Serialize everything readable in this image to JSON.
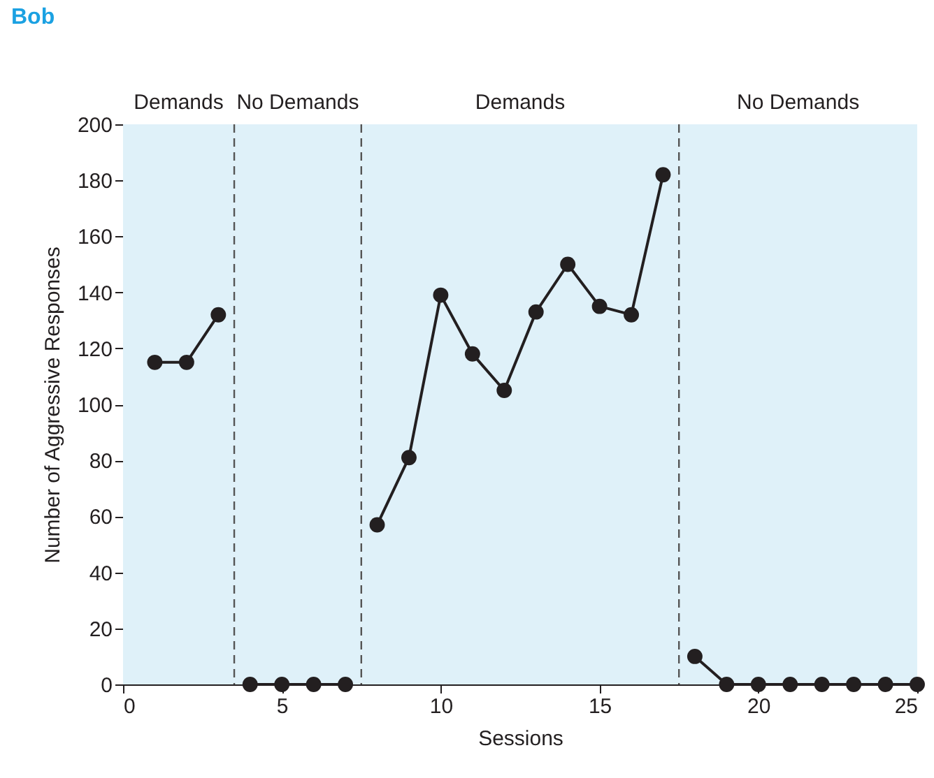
{
  "chart_data": {
    "type": "line",
    "title": "Bob",
    "xlabel": "Sessions",
    "ylabel": "Number of Aggressive Responses",
    "xlim": [
      0,
      25
    ],
    "xticks": [
      0,
      5,
      10,
      15,
      20,
      25
    ],
    "ylim": [
      0,
      200
    ],
    "yticks": [
      0,
      20,
      40,
      60,
      80,
      100,
      120,
      140,
      160,
      180,
      200
    ],
    "grid": false,
    "legend": false,
    "marker": "circle",
    "line_style": "solid",
    "series": [
      {
        "color": "#231f20",
        "x": [
          1,
          2,
          3
        ],
        "values": [
          115,
          115,
          132
        ]
      },
      {
        "color": "#231f20",
        "x": [
          4,
          5,
          6,
          7
        ],
        "values": [
          0,
          0,
          0,
          0
        ]
      },
      {
        "color": "#231f20",
        "x": [
          8,
          9,
          10,
          11,
          12,
          13,
          14,
          15,
          16,
          17
        ],
        "values": [
          57,
          81,
          139,
          118,
          105,
          133,
          150,
          135,
          132,
          182
        ]
      },
      {
        "color": "#231f20",
        "x": [
          18,
          19,
          20,
          21,
          22,
          23,
          24,
          25
        ],
        "values": [
          10,
          0,
          0,
          0,
          0,
          0,
          0,
          0
        ]
      }
    ],
    "bands": [
      {
        "axis": "x",
        "from": 0,
        "to": 3.5,
        "label": "Demands",
        "color": "#dff1f9"
      },
      {
        "axis": "x",
        "from": 3.5,
        "to": 7.5,
        "label": "No Demands",
        "color": "#dff1f9"
      },
      {
        "axis": "x",
        "from": 7.5,
        "to": 17.5,
        "label": "Demands",
        "color": "#dff1f9"
      },
      {
        "axis": "x",
        "from": 17.5,
        "to": 25,
        "label": "No Demands",
        "color": "#dff1f9"
      }
    ],
    "ref_lines": [
      {
        "axis": "x",
        "value": 3.5,
        "line_style": "dashed",
        "color": "#555555"
      },
      {
        "axis": "x",
        "value": 7.5,
        "line_style": "dashed",
        "color": "#555555"
      },
      {
        "axis": "x",
        "value": 17.5,
        "line_style": "dashed",
        "color": "#555555"
      }
    ]
  }
}
